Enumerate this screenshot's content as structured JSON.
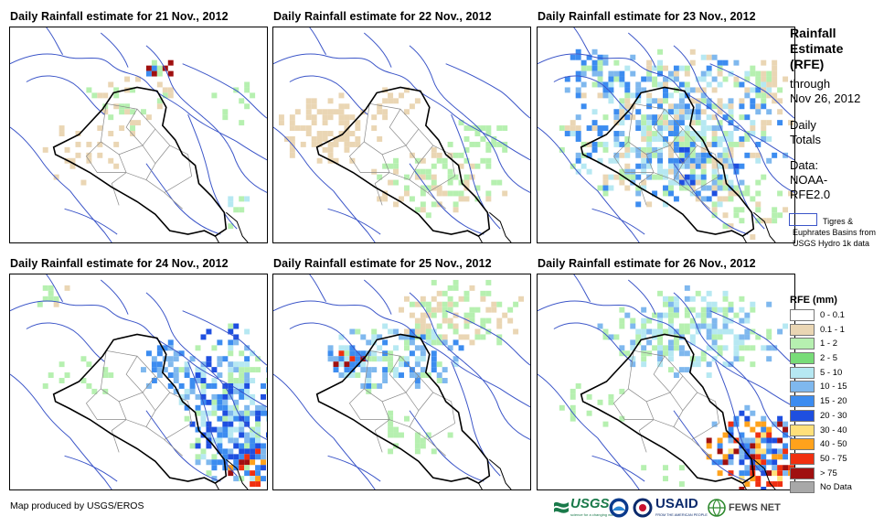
{
  "panels": [
    {
      "title": "Daily Rainfall estimate for 21 Nov., 2012"
    },
    {
      "title": "Daily Rainfall estimate for 22 Nov., 2012"
    },
    {
      "title": "Daily Rainfall estimate for 23 Nov., 2012"
    },
    {
      "title": "Daily Rainfall estimate for 24 Nov., 2012"
    },
    {
      "title": "Daily Rainfall estimate for 25 Nov., 2012"
    },
    {
      "title": "Daily Rainfall estimate for 26 Nov., 2012"
    }
  ],
  "sidebar": {
    "title_line1": "Rainfall",
    "title_line2": "Estimate",
    "title_line3": "(RFE)",
    "through_line1": "through",
    "through_line2": "Nov 26, 2012",
    "daily_line1": "Daily",
    "daily_line2": "Totals",
    "data_line1": "Data:",
    "data_line2": "NOAA-",
    "data_line3": "RFE2.0"
  },
  "basin_legend": {
    "text": "Tigres & Euphrates Basins from USGS Hydro 1k data",
    "color": "#3b55c8"
  },
  "rfe_legend": {
    "title": "RFE (mm)",
    "classes": [
      {
        "label": "0 - 0.1",
        "color": "#ffffff"
      },
      {
        "label": "0.1 - 1",
        "color": "#ead6b4"
      },
      {
        "label": "1 - 2",
        "color": "#b6f0b0"
      },
      {
        "label": "2 - 5",
        "color": "#78dc78"
      },
      {
        "label": "5 - 10",
        "color": "#b6e8f2"
      },
      {
        "label": "10 - 15",
        "color": "#7fb8ee"
      },
      {
        "label": "15 - 20",
        "color": "#3c8cf0"
      },
      {
        "label": "20 - 30",
        "color": "#1e4fe0"
      },
      {
        "label": "30 - 40",
        "color": "#ffe07a"
      },
      {
        "label": "40 - 50",
        "color": "#ffa21c"
      },
      {
        "label": "50 - 75",
        "color": "#f03010"
      },
      {
        "label": "> 75",
        "color": "#a01010"
      },
      {
        "label": "No Data",
        "color": "#a8a8a8"
      }
    ]
  },
  "footer": {
    "credit": "Map produced by USGS/EROS",
    "usgs_logo": "USGS",
    "usgs_tagline": "science for a changing world",
    "noaa_logo": "NOAA",
    "usaid_logo": "USAID",
    "usaid_tagline": "FROM THE AMERICAN PEOPLE",
    "fews_logo": "FEWS NET"
  }
}
